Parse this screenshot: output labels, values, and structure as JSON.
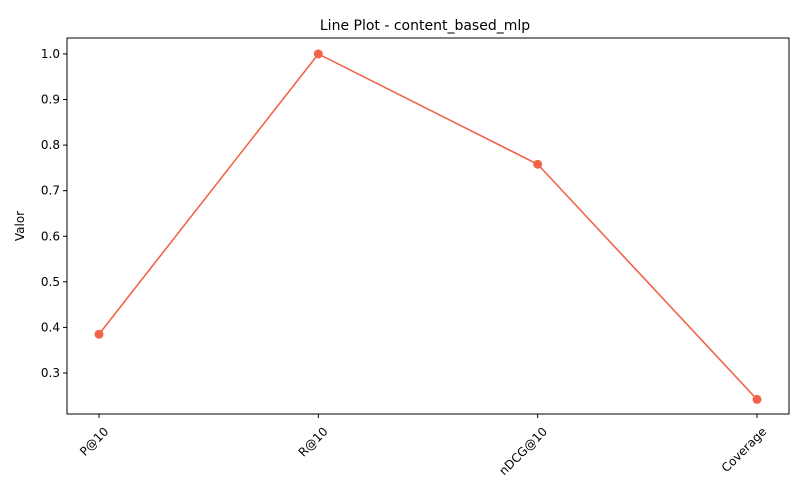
{
  "chart_data": {
    "type": "line",
    "title": "Line Plot - content_based_mlp",
    "xlabel": "",
    "ylabel": "Valor",
    "categories": [
      "P@10",
      "R@10",
      "nDCG@10",
      "Coverage"
    ],
    "series": [
      {
        "values": [
          0.385,
          1.0,
          0.758,
          0.242
        ],
        "color": "#f26449",
        "marker": "circle"
      }
    ],
    "ylim": [
      0.21,
      1.035
    ],
    "yticks": [
      0.3,
      0.4,
      0.5,
      0.6,
      0.7,
      0.8,
      0.9,
      1.0
    ],
    "ytick_labels": [
      "0.3",
      "0.4",
      "0.5",
      "0.6",
      "0.7",
      "0.8",
      "0.9",
      "1.0"
    ],
    "xtick_rotation": 45,
    "grid": false,
    "legend": "none"
  }
}
